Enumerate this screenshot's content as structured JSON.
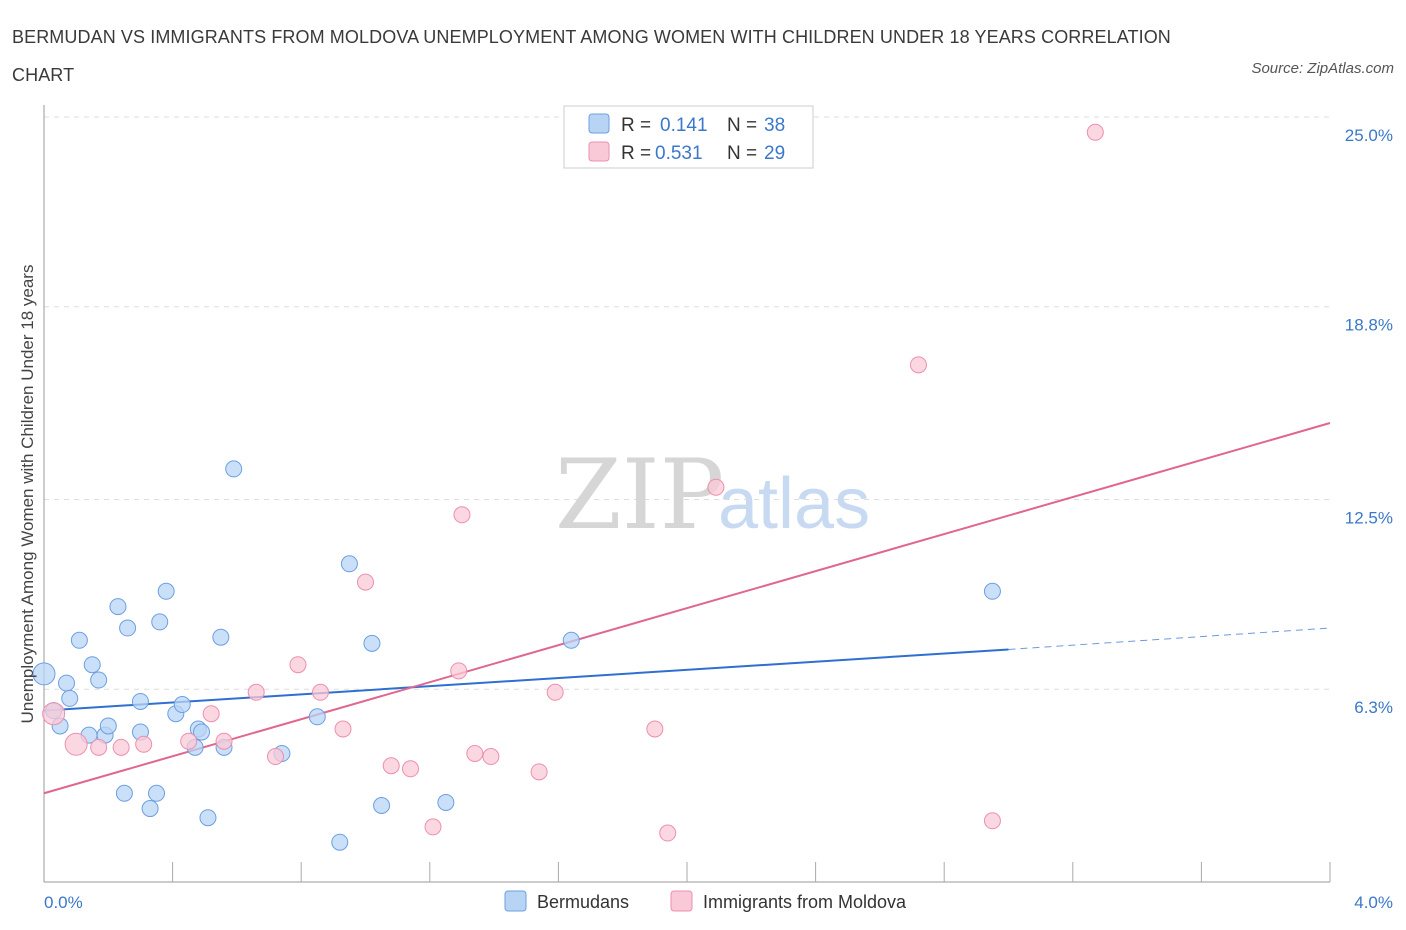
{
  "title": "BERMUDAN VS IMMIGRANTS FROM MOLDOVA UNEMPLOYMENT AMONG WOMEN WITH CHILDREN UNDER 18 YEARS CORRELATION CHART",
  "source": "Source: ZipAtlas.com",
  "watermark": {
    "zip": "ZIP",
    "atlas": "atlas"
  },
  "legend_top": [
    {
      "r_label": "R =",
      "r_value": "0.141",
      "n_label": "N =",
      "n_value": "38"
    },
    {
      "r_label": "R =",
      "r_value": "0.531",
      "n_label": "N =",
      "n_value": "29"
    }
  ],
  "colors": {
    "bermudans_fill": "#b8d4f5",
    "bermudans_stroke": "#6d9fe0",
    "bermudans_line": "#2f6fcf",
    "moldova_fill": "#f9c9d8",
    "moldova_stroke": "#ec8fae",
    "moldova_line": "#e06690",
    "grid": "#dddddd",
    "tick_text": "#3b78c9"
  },
  "chart_data": {
    "type": "scatter",
    "title": "BERMUDAN VS IMMIGRANTS FROM MOLDOVA UNEMPLOYMENT AMONG WOMEN WITH CHILDREN UNDER 18 YEARS CORRELATION CHART",
    "xlabel": "",
    "ylabel": "Unemployment Among Women with Children Under 18 years",
    "xlim": [
      0,
      4.0
    ],
    "ylim": [
      0,
      25.0
    ],
    "x_tick_labels": [
      "0.0%",
      "4.0%"
    ],
    "y_ticks": [
      6.3,
      12.5,
      18.8,
      25.0
    ],
    "y_tick_labels": [
      "6.3%",
      "12.5%",
      "18.8%",
      "25.0%"
    ],
    "grid": true,
    "legend_placement": "bottom-center",
    "series": [
      {
        "name": "Bermudans",
        "r": 0.141,
        "n": 38,
        "trend": {
          "x0": 0.0,
          "y0": 5.6,
          "x1": 3.0,
          "y1": 7.6,
          "dashed_to_x": 4.0,
          "dashed_to_y": 8.3
        },
        "points": [
          [
            0.0,
            6.8
          ],
          [
            0.03,
            5.6
          ],
          [
            0.05,
            5.1
          ],
          [
            0.07,
            6.5
          ],
          [
            0.08,
            6.0
          ],
          [
            0.11,
            7.9
          ],
          [
            0.14,
            4.8
          ],
          [
            0.15,
            7.1
          ],
          [
            0.17,
            6.6
          ],
          [
            0.19,
            4.8
          ],
          [
            0.2,
            5.1
          ],
          [
            0.23,
            9.0
          ],
          [
            0.25,
            2.9
          ],
          [
            0.26,
            8.3
          ],
          [
            0.3,
            4.9
          ],
          [
            0.3,
            5.9
          ],
          [
            0.33,
            2.4
          ],
          [
            0.35,
            2.9
          ],
          [
            0.36,
            8.5
          ],
          [
            0.38,
            9.5
          ],
          [
            0.41,
            5.5
          ],
          [
            0.43,
            5.8
          ],
          [
            0.47,
            4.4
          ],
          [
            0.48,
            5.0
          ],
          [
            0.49,
            4.9
          ],
          [
            0.51,
            2.1
          ],
          [
            0.55,
            8.0
          ],
          [
            0.56,
            4.4
          ],
          [
            0.59,
            13.5
          ],
          [
            0.74,
            4.2
          ],
          [
            0.85,
            5.4
          ],
          [
            0.92,
            1.3
          ],
          [
            0.95,
            10.4
          ],
          [
            1.02,
            7.8
          ],
          [
            1.05,
            2.5
          ],
          [
            1.25,
            2.6
          ],
          [
            1.64,
            7.9
          ],
          [
            2.95,
            9.5
          ]
        ]
      },
      {
        "name": "Immigrants from Moldova",
        "r": 0.531,
        "n": 29,
        "trend": {
          "x0": 0.0,
          "y0": 2.9,
          "x1": 4.0,
          "y1": 15.0
        },
        "points": [
          [
            0.03,
            5.5
          ],
          [
            0.1,
            4.5
          ],
          [
            0.17,
            4.4
          ],
          [
            0.24,
            4.4
          ],
          [
            0.31,
            4.5
          ],
          [
            0.45,
            4.6
          ],
          [
            0.52,
            5.5
          ],
          [
            0.56,
            4.6
          ],
          [
            0.66,
            6.2
          ],
          [
            0.72,
            4.1
          ],
          [
            0.79,
            7.1
          ],
          [
            0.86,
            6.2
          ],
          [
            0.93,
            5.0
          ],
          [
            1.0,
            9.8
          ],
          [
            1.08,
            3.8
          ],
          [
            1.14,
            3.7
          ],
          [
            1.21,
            1.8
          ],
          [
            1.3,
            12.0
          ],
          [
            1.29,
            6.9
          ],
          [
            1.39,
            4.1
          ],
          [
            1.54,
            3.6
          ],
          [
            1.59,
            6.2
          ],
          [
            1.9,
            5.0
          ],
          [
            1.94,
            1.6
          ],
          [
            2.09,
            12.9
          ],
          [
            2.72,
            16.9
          ],
          [
            2.95,
            2.0
          ],
          [
            3.27,
            24.5
          ],
          [
            1.34,
            4.2
          ]
        ]
      }
    ]
  },
  "legend_bottom": [
    {
      "label": "Bermudans"
    },
    {
      "label": "Immigrants from Moldova"
    }
  ]
}
